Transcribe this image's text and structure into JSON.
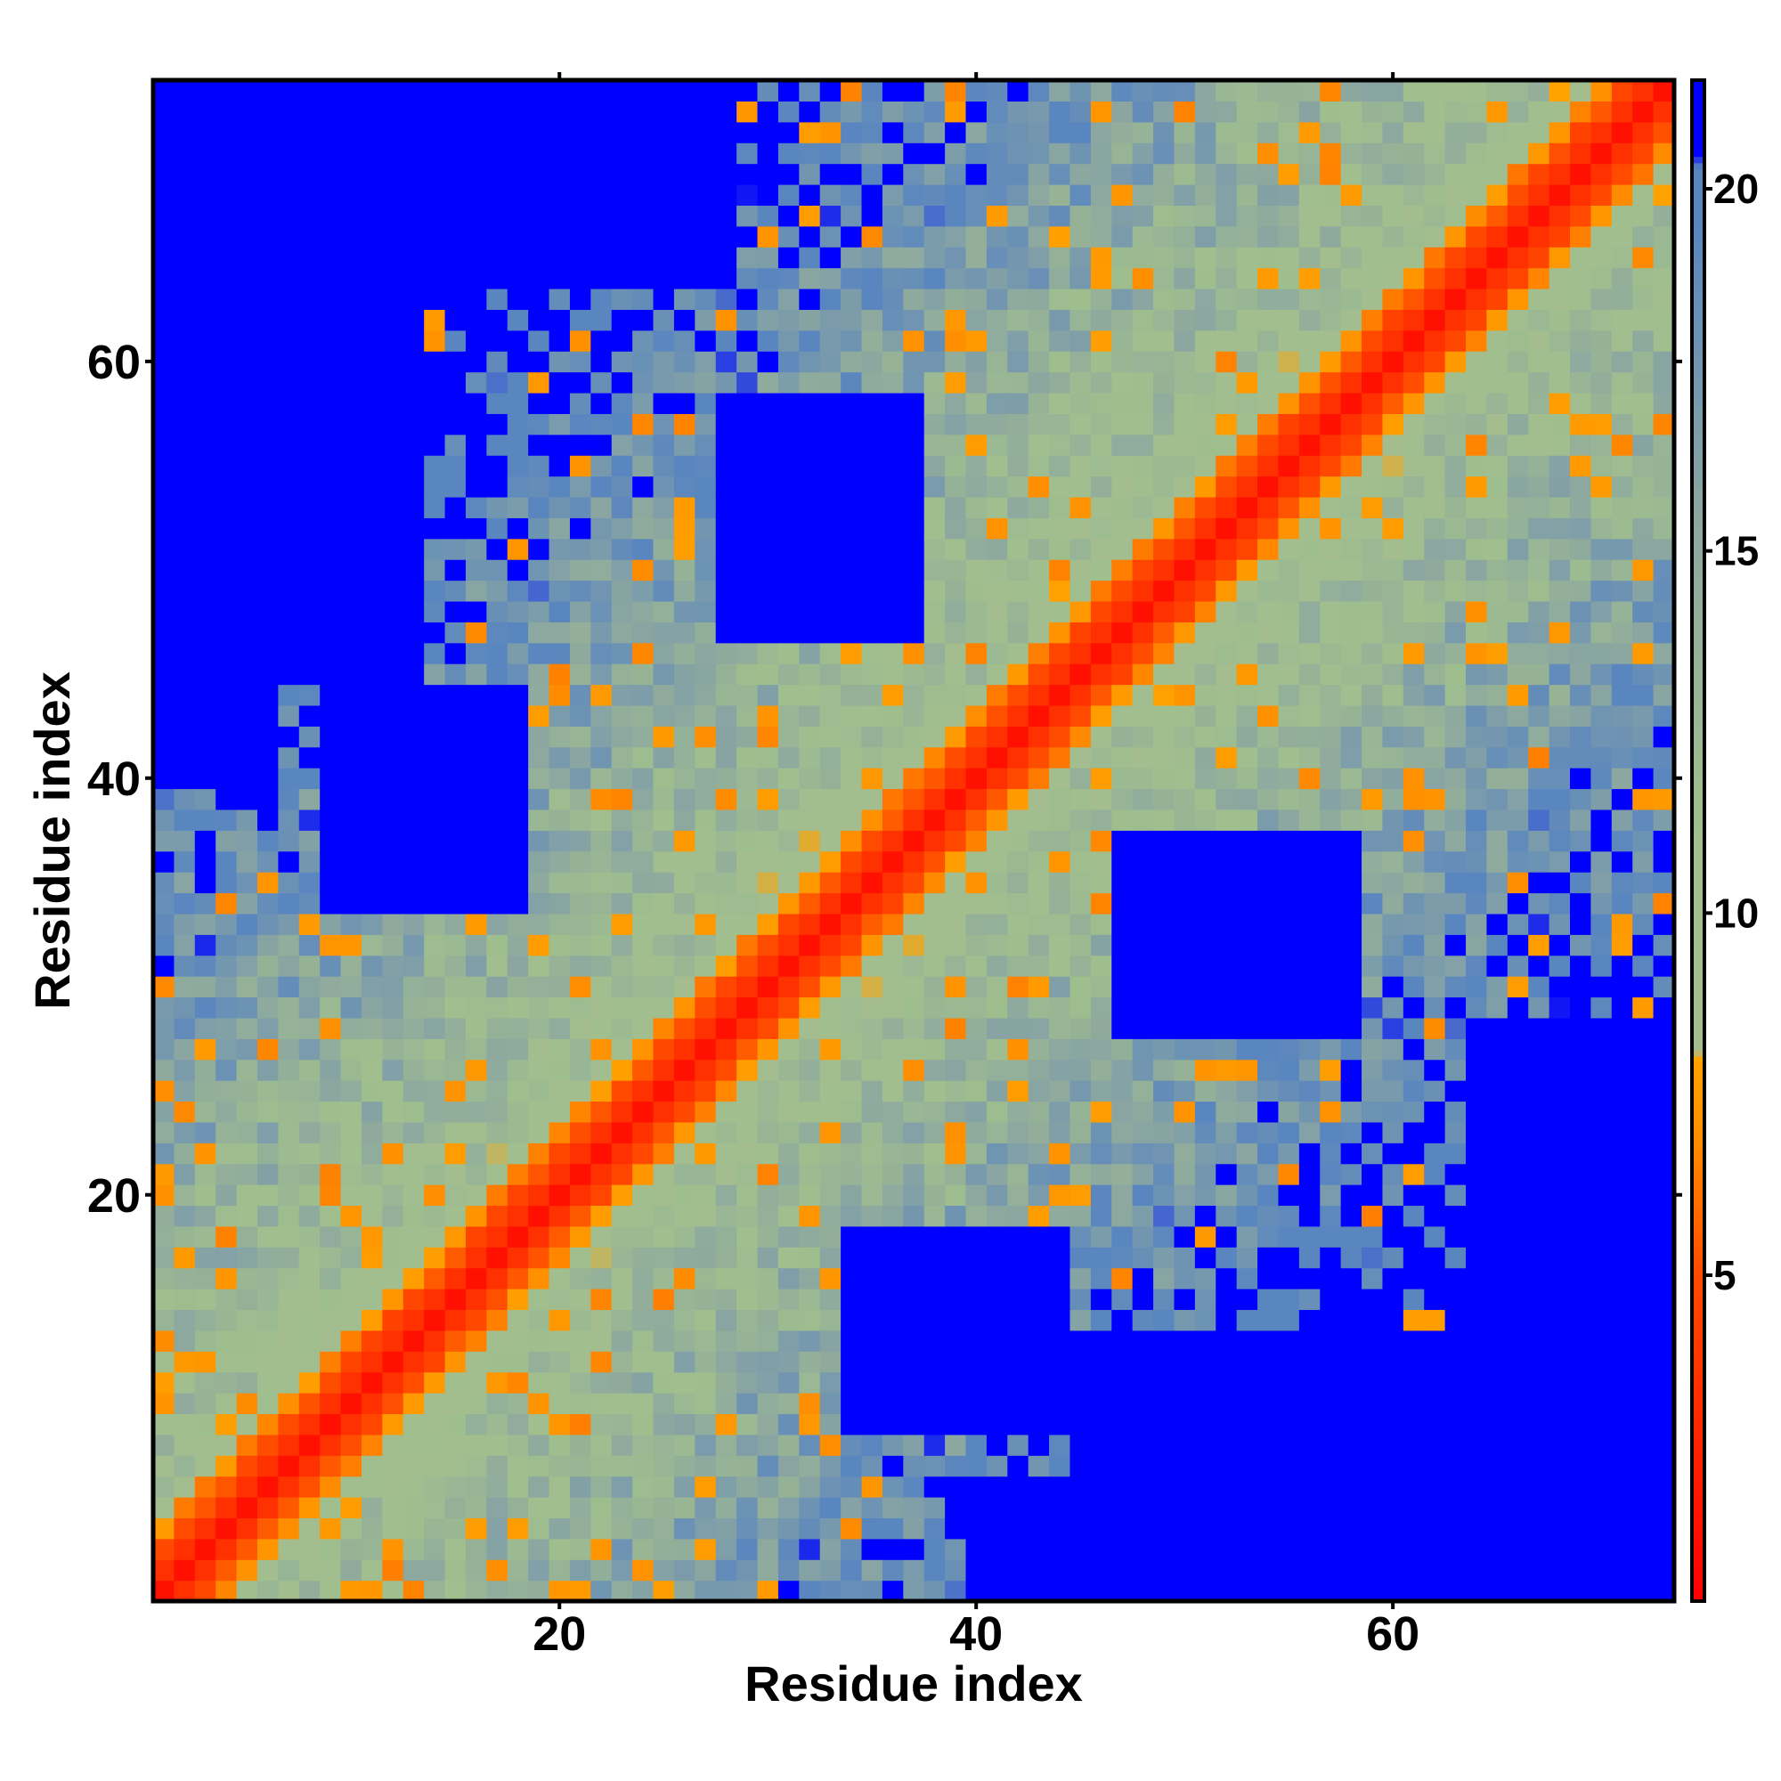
{
  "chart_data": {
    "type": "heatmap",
    "title": "",
    "xlabel": "Residue index",
    "ylabel": "Residue index",
    "n": 74,
    "xlim": [
      0.5,
      73.5
    ],
    "ylim": [
      0.5,
      73.5
    ],
    "x_ticks": [
      20,
      40,
      60
    ],
    "y_ticks": [
      20,
      40,
      60
    ],
    "colorbar": {
      "range": [
        0.5,
        21.5
      ],
      "ticks": [
        5,
        10,
        15,
        20
      ],
      "stops": [
        {
          "value": 0.5,
          "color": "#ff0000"
        },
        {
          "value": 5.0,
          "color": "#ff4a00"
        },
        {
          "value": 7.0,
          "color": "#ff9100"
        },
        {
          "value": 8.0,
          "color": "#ffa200"
        },
        {
          "value": 8.1,
          "color": "#a4bd8e"
        },
        {
          "value": 11.5,
          "color": "#9fbe8e"
        },
        {
          "value": 15.5,
          "color": "#8ca7a0"
        },
        {
          "value": 19.5,
          "color": "#5a86bf"
        },
        {
          "value": 20.3,
          "color": "#5a86bf"
        },
        {
          "value": 20.5,
          "color": "#0000ff"
        },
        {
          "value": 21.5,
          "color": "#0000ff"
        }
      ]
    },
    "distance_model": "symmetric contact map: approx. distance(i,j) = |i-j|-based band (values < 4 red diagonal, 5-8 orange neighbours, 9-14 green, 15-20 blue-grey, >20 blue)"
  }
}
